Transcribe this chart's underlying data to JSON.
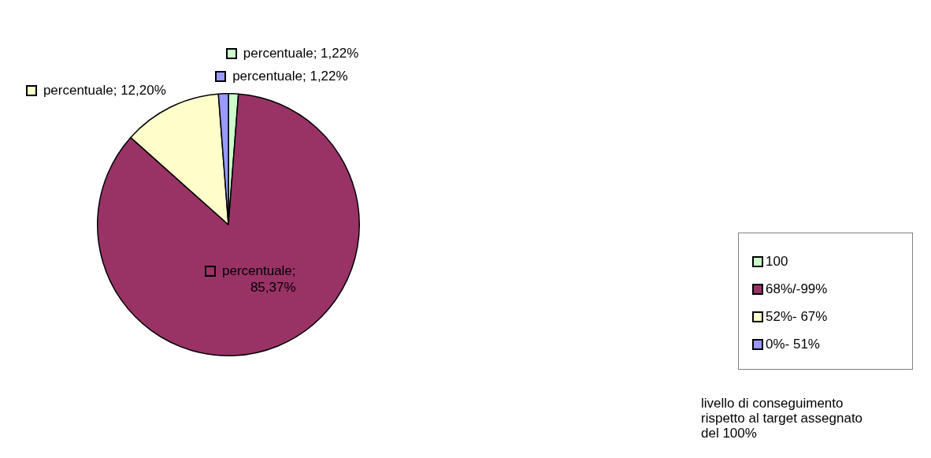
{
  "chart_data": {
    "type": "pie",
    "categories": [
      "100",
      "68%/-99%",
      "52%- 67%",
      "0%- 51%"
    ],
    "values": [
      1.22,
      85.37,
      12.2,
      1.22
    ],
    "colors": [
      "#ccffcc",
      "#993366",
      "#ffffcc",
      "#9999ff"
    ],
    "value_labels": [
      "percentuale; 1,22%",
      "percentuale; 85,37%",
      "percentuale; 12,20%",
      "percentuale; 1,22%"
    ],
    "legend": "right",
    "annotations": [
      "livello di conseguimento rispetto al target assegnato del 100%"
    ]
  }
}
